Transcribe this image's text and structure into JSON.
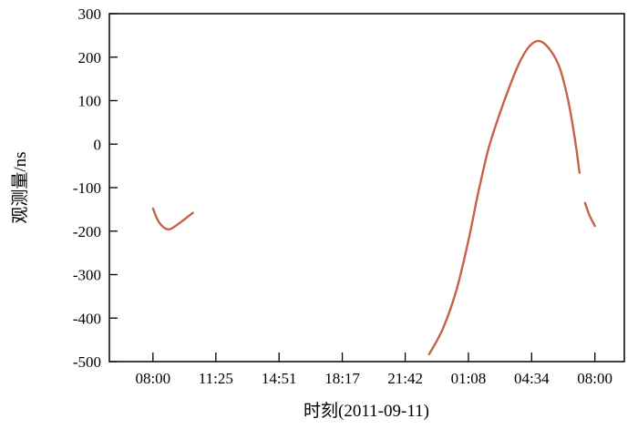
{
  "chart_data": {
    "type": "line",
    "title": "",
    "xlabel": "时刻(2011-09-11)",
    "ylabel": "观测量/ns",
    "xlim": [
      "2011-09-11 05:38",
      "2011-09-12 09:36"
    ],
    "ylim": [
      -500,
      300
    ],
    "x_ticks": [
      {
        "t": "2011-09-11 08:00",
        "label": "08:00"
      },
      {
        "t": "2011-09-11 11:25",
        "label": "11:25"
      },
      {
        "t": "2011-09-11 14:51",
        "label": "14:51"
      },
      {
        "t": "2011-09-11 18:17",
        "label": "18:17"
      },
      {
        "t": "2011-09-11 21:42",
        "label": "21:42"
      },
      {
        "t": "2011-09-12 01:08",
        "label": "01:08"
      },
      {
        "t": "2011-09-12 04:34",
        "label": "04:34"
      },
      {
        "t": "2011-09-12 08:00",
        "label": "08:00"
      }
    ],
    "y_ticks": [
      300,
      200,
      100,
      0,
      -100,
      -200,
      -300,
      -400,
      -500
    ],
    "grid": false,
    "line_color": "#c8604c",
    "series": [
      {
        "points": [
          [
            "2011-09-11 08:00",
            -148
          ],
          [
            "2011-09-11 08:20",
            -180
          ],
          [
            "2011-09-11 08:49",
            -196
          ],
          [
            "2011-09-11 09:20",
            -185
          ],
          [
            "2011-09-11 10:10",
            -158
          ]
        ]
      },
      {
        "points": [
          [
            "2011-09-11 23:00",
            -483
          ],
          [
            "2011-09-11 23:45",
            -424
          ],
          [
            "2011-09-12 00:30",
            -333
          ],
          [
            "2011-09-12 01:10",
            -215
          ],
          [
            "2011-09-12 01:38",
            -118
          ],
          [
            "2011-09-12 02:12",
            -14
          ],
          [
            "2011-09-12 02:46",
            62
          ],
          [
            "2011-09-12 03:18",
            125
          ],
          [
            "2011-09-12 03:54",
            187
          ],
          [
            "2011-09-12 04:28",
            226
          ],
          [
            "2011-09-12 05:00",
            237
          ],
          [
            "2011-09-12 05:36",
            215
          ],
          [
            "2011-09-12 06:06",
            174
          ],
          [
            "2011-09-12 06:34",
            97
          ],
          [
            "2011-09-12 06:56",
            7
          ],
          [
            "2011-09-12 07:10",
            -66
          ]
        ]
      },
      {
        "points": [
          [
            "2011-09-12 07:28",
            -135
          ],
          [
            "2011-09-12 07:42",
            -163
          ],
          [
            "2011-09-12 08:00",
            -188
          ]
        ]
      }
    ]
  }
}
